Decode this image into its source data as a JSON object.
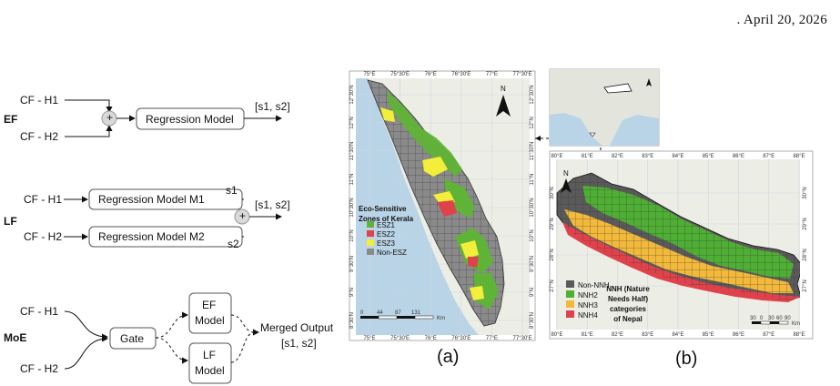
{
  "header": {
    "text": ". April 20, 2026"
  },
  "diagram": {
    "ef": {
      "label": "EF",
      "in1": "CF - H1",
      "in2": "CF - H2",
      "model": "Regression Model",
      "out": "[s1, s2]",
      "plus": "+"
    },
    "lf": {
      "label": "LF",
      "in1": "CF - H1",
      "in2": "CF - H2",
      "model1": "Regression Model M1",
      "model2": "Regression Model M2",
      "s1": "s1",
      "s2": "s2",
      "out": "[s1, s2]",
      "plus": "+"
    },
    "moe": {
      "label": "MoE",
      "in1": "CF - H1",
      "in2": "CF - H2",
      "gate": "Gate",
      "ef_model_line1": "EF",
      "ef_model_line2": "Model",
      "lf_model_line1": "LF",
      "lf_model_line2": "Model",
      "out_line1": "Merged Output",
      "out_line2": "[s1, s2]"
    }
  },
  "map_a": {
    "caption": "(a)",
    "legend_title_line1": "Eco-Sensitive",
    "legend_title_line2": "Zones of Kerala",
    "legend": [
      {
        "label": "ESZ1",
        "color": "#5fb336"
      },
      {
        "label": "ESZ2",
        "color": "#e0424b"
      },
      {
        "label": "ESZ3",
        "color": "#f2ee3a"
      },
      {
        "label": "Non-ESZ",
        "color": "#8a8a8a"
      }
    ],
    "top_ticks": [
      "75°E",
      "75°30'E",
      "76°E",
      "76°30'E",
      "77°E",
      "77°30'E"
    ],
    "left_ticks": [
      "12°30'N",
      "12°N",
      "11°30'N",
      "11°N",
      "10°30'N",
      "10°N",
      "9°30'N",
      "9°N",
      "8°30'N"
    ],
    "north": "N",
    "scale": [
      "0",
      "44",
      "87",
      "131",
      "Km"
    ]
  },
  "map_b": {
    "caption": "(b)",
    "legend": [
      {
        "label": "Non-NNH",
        "color": "#5a5a5a"
      },
      {
        "label": "NNH2",
        "color": "#4fae34"
      },
      {
        "label": "NNH3",
        "color": "#f2b93a"
      },
      {
        "label": "NNH4",
        "color": "#e0424b"
      }
    ],
    "title_line1": "NNH (Nature",
    "title_line2": "Needs Half)",
    "title_line3": "categories",
    "title_line4": "of Nepal",
    "top_ticks": [
      "80°E",
      "81°E",
      "82°E",
      "83°E",
      "84°E",
      "85°E",
      "86°E",
      "87°E",
      "88°E"
    ],
    "left_ticks": [
      "30°N",
      "29°N",
      "28°N",
      "27°N"
    ],
    "north": "N",
    "scale": [
      "30",
      "0",
      "30",
      "60",
      "90",
      "Km"
    ]
  },
  "colors": {
    "sea": "#b9d4e6",
    "land": "#eceee6"
  }
}
